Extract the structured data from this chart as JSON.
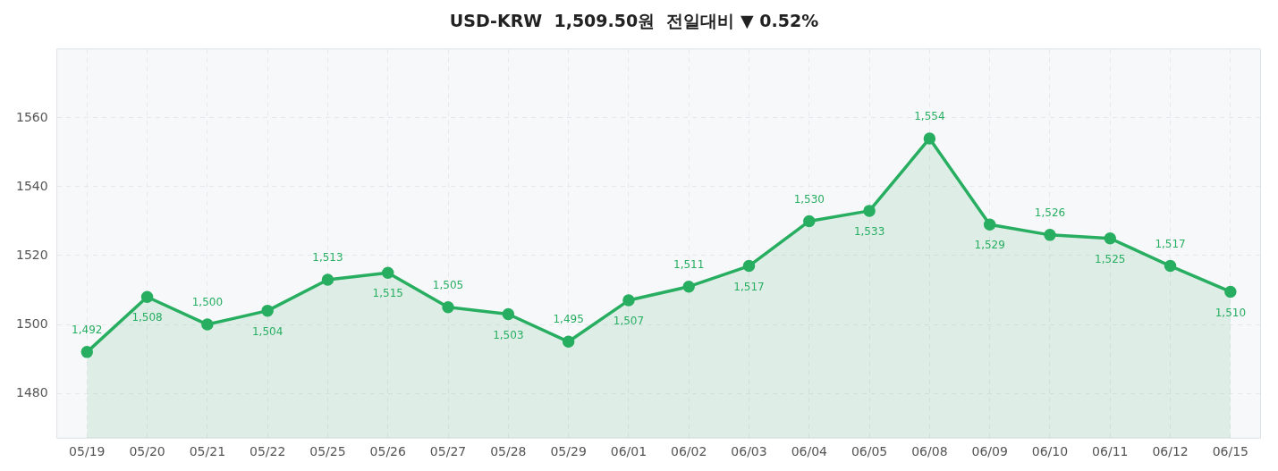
{
  "chart_data": {
    "type": "area",
    "title": "USD-KRW  1,509.50원  전일대비 ▼ 0.52%",
    "categories": [
      "05/19",
      "05/20",
      "05/21",
      "05/22",
      "05/25",
      "05/26",
      "05/27",
      "05/28",
      "05/29",
      "06/01",
      "06/02",
      "06/03",
      "06/04",
      "06/05",
      "06/08",
      "06/09",
      "06/10",
      "06/11",
      "06/12",
      "06/15"
    ],
    "series": [
      {
        "color": "#27ae60",
        "values": [
          1492,
          1508,
          1500,
          1504,
          1513,
          1515,
          1505,
          1503,
          1495,
          1507,
          1511,
          1517,
          1530,
          1533,
          1554,
          1529,
          1526,
          1525,
          1517,
          1509.5
        ],
        "value_labels": [
          "1,492",
          "1,508",
          "1,500",
          "1,504",
          "1,513",
          "1,515",
          "1,505",
          "1,503",
          "1,495",
          "1,507",
          "1,511",
          "1,517",
          "1,530",
          "1,533",
          "1,554",
          "1,529",
          "1,526",
          "1,525",
          "1,517",
          "1,510"
        ]
      }
    ],
    "ylim": [
      1467,
      1580
    ],
    "yticks": [
      1480,
      1500,
      1520,
      1540,
      1560
    ],
    "grid": true,
    "marker": "circle",
    "line_style": "solid"
  }
}
